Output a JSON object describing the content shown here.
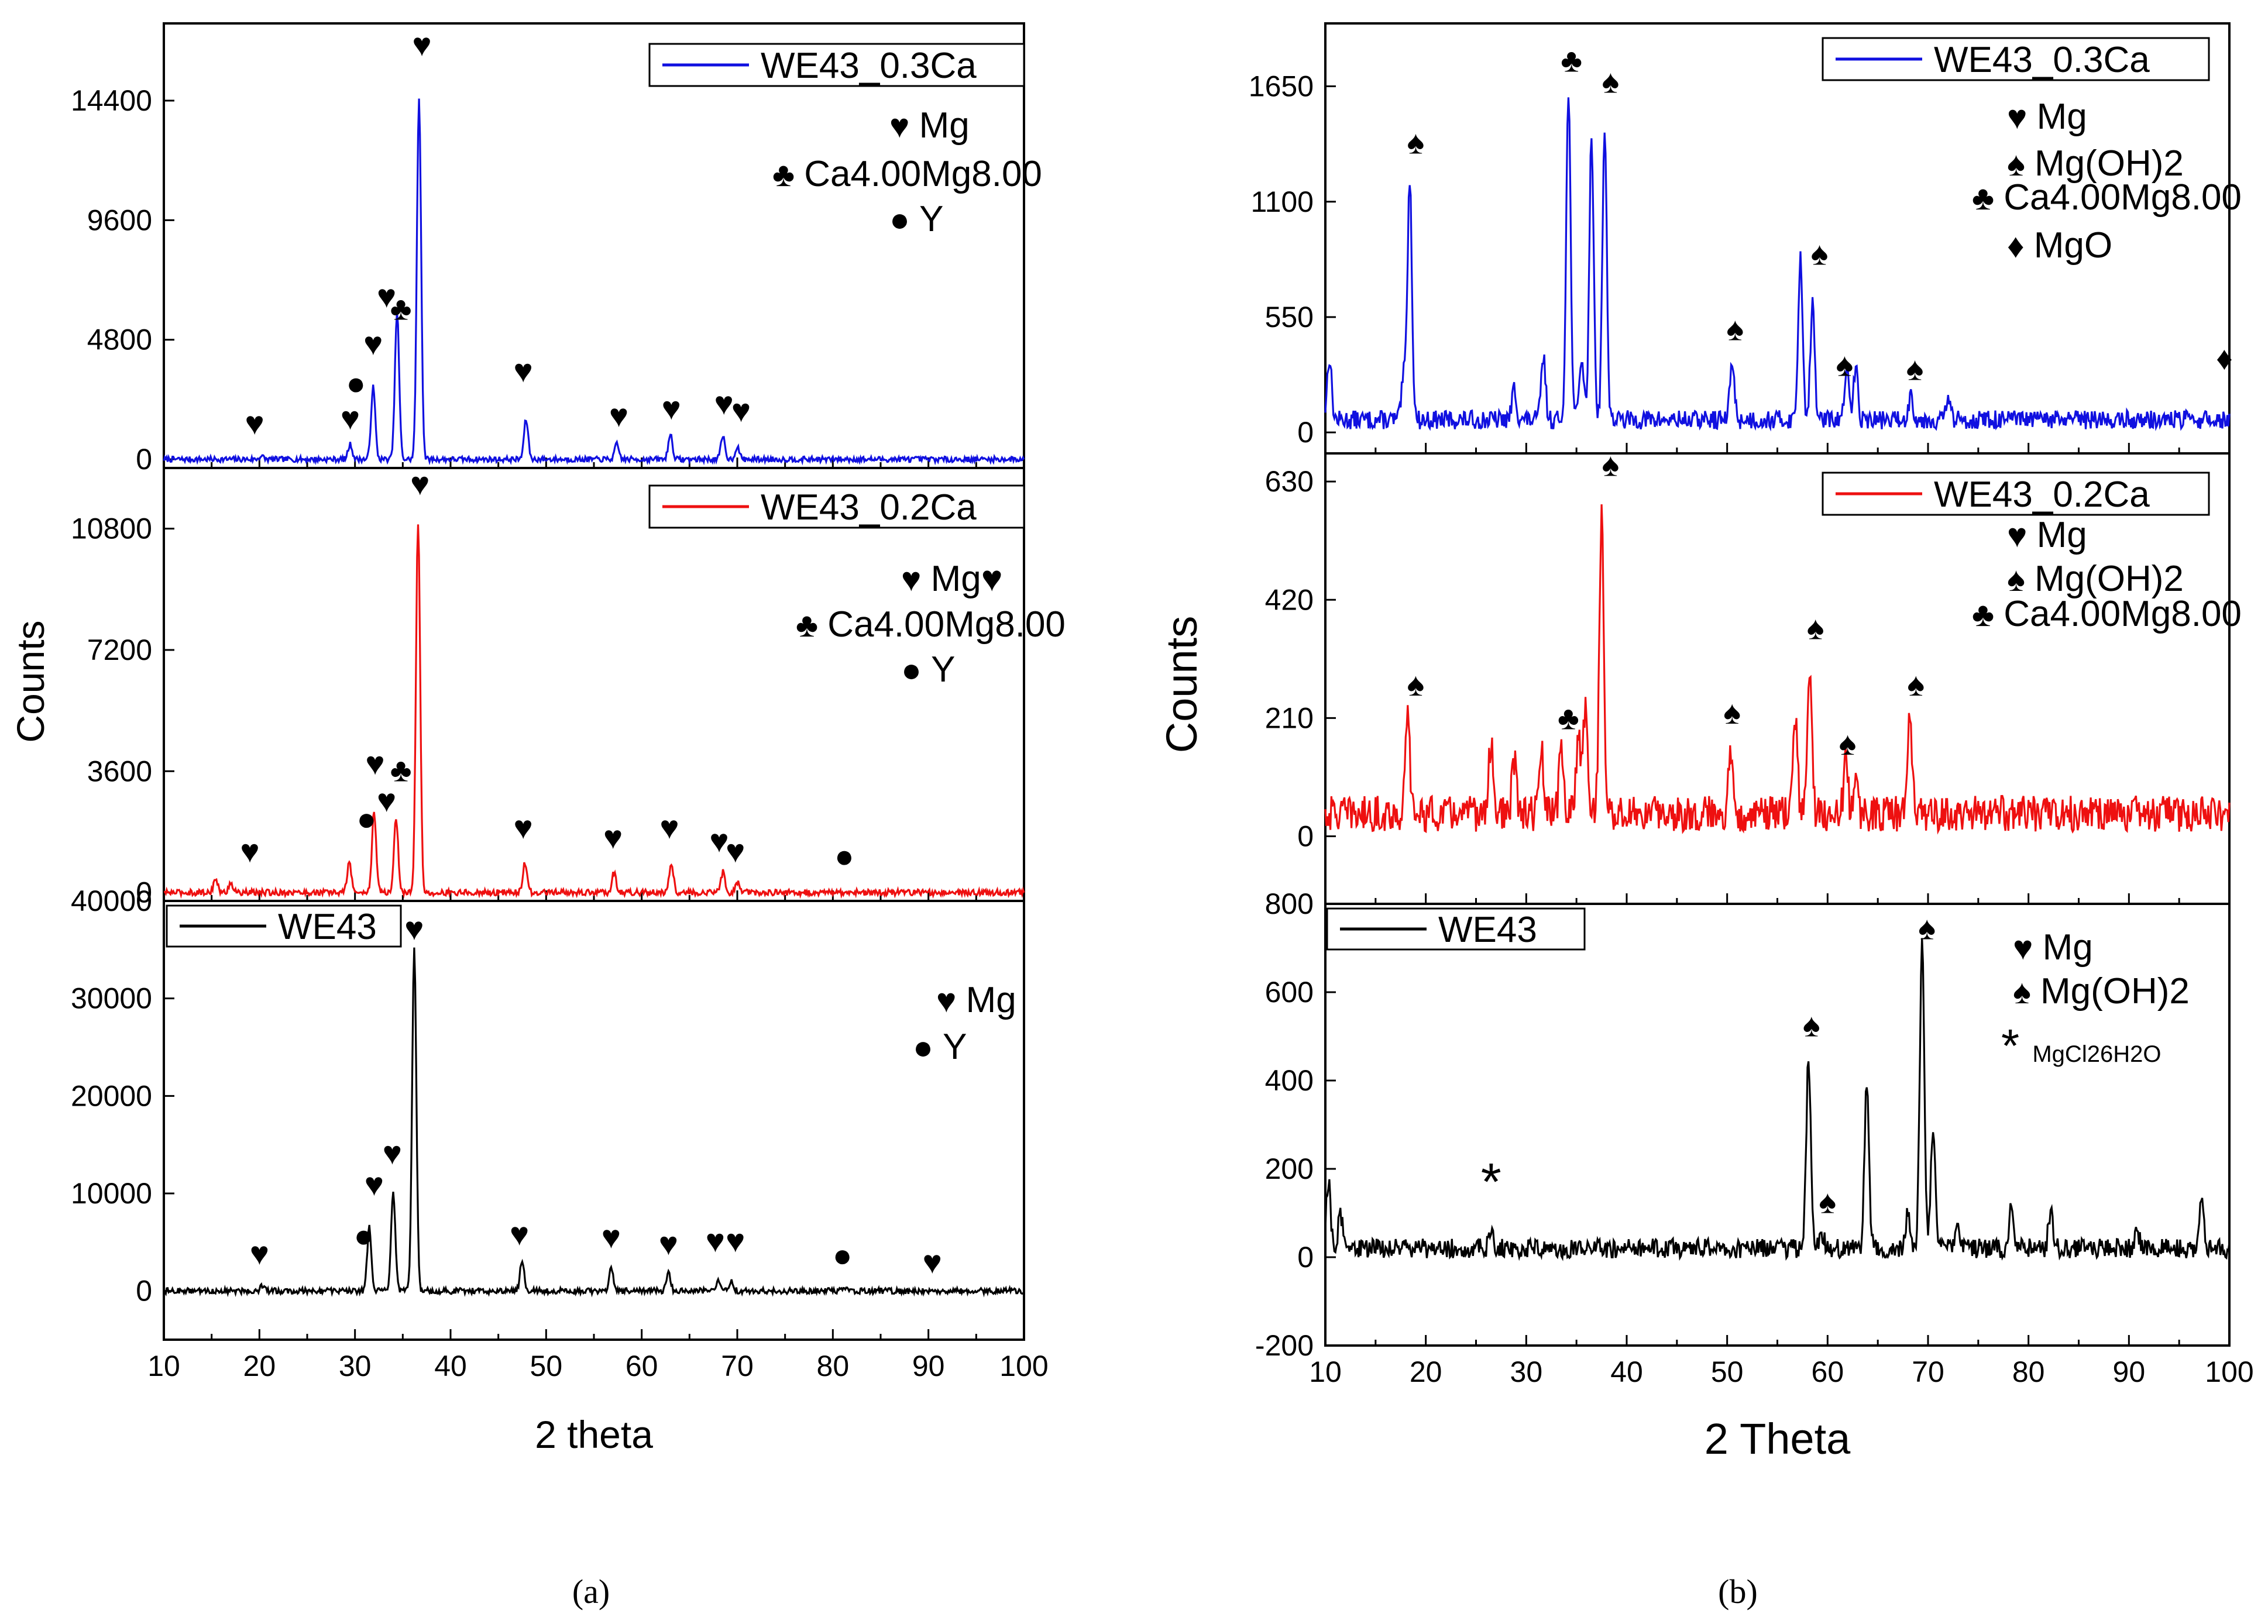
{
  "figure": {
    "caption_a": "(a)",
    "caption_b": "(b)"
  },
  "chart_data": [
    {
      "id": "a",
      "type": "line",
      "stacked": true,
      "xlabel": "2 theta",
      "ylabel": "Counts",
      "xlim": [
        10,
        100
      ],
      "xticks": [
        10,
        20,
        30,
        40,
        50,
        60,
        70,
        80,
        90,
        100
      ],
      "panels": [
        {
          "name": "WE43_0.3Ca",
          "color": "#1010e0",
          "legend_label": "WE43_0.3Ca",
          "ylim": [
            -350,
            17500
          ],
          "yticks": [
            0,
            4800,
            9600,
            14400
          ],
          "baseline": 0,
          "noise": 110,
          "peaks": [
            [
              20.2,
              120
            ],
            [
              29.5,
              600
            ],
            [
              31.9,
              2900
            ],
            [
              34.4,
              5900
            ],
            [
              36.7,
              14500
            ],
            [
              47.9,
              1600
            ],
            [
              57.4,
              600
            ],
            [
              63.0,
              1000
            ],
            [
              68.5,
              900
            ],
            [
              70.0,
              500
            ]
          ],
          "markers": [
            {
              "x": 19.5,
              "y": 1000,
              "sym": "♥"
            },
            {
              "x": 29.5,
              "y": 1200,
              "sym": "♥"
            },
            {
              "x": 30.1,
              "y": 2600,
              "sym": "●"
            },
            {
              "x": 31.9,
              "y": 4200,
              "sym": "♥"
            },
            {
              "x": 33.3,
              "y": 6100,
              "sym": "♥"
            },
            {
              "x": 34.8,
              "y": 5600,
              "sym": "♣"
            },
            {
              "x": 37.0,
              "y": 16200,
              "sym": "♥"
            },
            {
              "x": 47.6,
              "y": 3100,
              "sym": "♥"
            },
            {
              "x": 57.6,
              "y": 1300,
              "sym": "♥"
            },
            {
              "x": 63.1,
              "y": 1600,
              "sym": "♥"
            },
            {
              "x": 68.6,
              "y": 1800,
              "sym": "♥"
            },
            {
              "x": 70.4,
              "y": 1500,
              "sym": "♥"
            }
          ],
          "phases": [
            {
              "sym": "♥",
              "label": "Mg"
            },
            {
              "sym": "♣",
              "label": "Ca4.00Mg8.00"
            },
            {
              "sym": "●",
              "label": "Y"
            }
          ]
        },
        {
          "name": "WE43_0.2Ca",
          "color": "#ee1010",
          "legend_label": "WE43_0.2Ca",
          "ylim": [
            -250,
            12600
          ],
          "yticks": [
            0,
            3600,
            7200,
            10800
          ],
          "baseline": 0,
          "noise": 90,
          "peaks": [
            [
              15.4,
              400
            ],
            [
              17.0,
              300
            ],
            [
              29.4,
              900
            ],
            [
              32.0,
              2400
            ],
            [
              34.3,
              2200
            ],
            [
              36.6,
              11000
            ],
            [
              47.8,
              900
            ],
            [
              57.1,
              600
            ],
            [
              63.1,
              900
            ],
            [
              68.5,
              600
            ],
            [
              70.0,
              300
            ]
          ],
          "markers": [
            {
              "x": 19.0,
              "y": 900,
              "sym": "♥"
            },
            {
              "x": 31.2,
              "y": 1850,
              "sym": "●"
            },
            {
              "x": 32.1,
              "y": 3500,
              "sym": "♥"
            },
            {
              "x": 33.3,
              "y": 2400,
              "sym": "♥"
            },
            {
              "x": 34.8,
              "y": 3300,
              "sym": "♣"
            },
            {
              "x": 36.8,
              "y": 11800,
              "sym": "♥"
            },
            {
              "x": 47.6,
              "y": 1600,
              "sym": "♥"
            },
            {
              "x": 57.0,
              "y": 1300,
              "sym": "♥"
            },
            {
              "x": 62.9,
              "y": 1600,
              "sym": "♥"
            },
            {
              "x": 68.1,
              "y": 1200,
              "sym": "♥"
            },
            {
              "x": 69.8,
              "y": 900,
              "sym": "♥"
            },
            {
              "x": 81.2,
              "y": 750,
              "sym": "●"
            }
          ],
          "phases": [
            {
              "sym": "♥",
              "label": "Mg♥"
            },
            {
              "sym": "♣",
              "label": "Ca4.00Mg8.00"
            },
            {
              "sym": "●",
              "label": "Y"
            }
          ]
        },
        {
          "name": "WE43",
          "color": "#000000",
          "legend_label": "WE43",
          "ylim": [
            -5000,
            40000
          ],
          "yticks": [
            0,
            10000,
            20000,
            30000,
            40000
          ],
          "baseline": 0,
          "noise": 300,
          "peaks": [
            [
              20.3,
              500
            ],
            [
              31.5,
              6500
            ],
            [
              34.0,
              10000
            ],
            [
              36.2,
              35000
            ],
            [
              47.5,
              3200
            ],
            [
              56.8,
              2200
            ],
            [
              62.8,
              1800
            ],
            [
              68.0,
              1200
            ],
            [
              69.4,
              1000
            ],
            [
              81.3,
              200
            ],
            [
              90.4,
              150
            ]
          ],
          "markers": [
            {
              "x": 20.0,
              "y": 2700,
              "sym": "♥"
            },
            {
              "x": 30.9,
              "y": 4500,
              "sym": "●"
            },
            {
              "x": 32.0,
              "y": 9800,
              "sym": "♥"
            },
            {
              "x": 33.9,
              "y": 13000,
              "sym": "♥"
            },
            {
              "x": 36.2,
              "y": 36000,
              "sym": "♥"
            },
            {
              "x": 47.2,
              "y": 4700,
              "sym": "♥"
            },
            {
              "x": 56.8,
              "y": 4400,
              "sym": "♥"
            },
            {
              "x": 62.8,
              "y": 3700,
              "sym": "♥"
            },
            {
              "x": 67.7,
              "y": 4000,
              "sym": "♥"
            },
            {
              "x": 69.8,
              "y": 4000,
              "sym": "♥"
            },
            {
              "x": 81.0,
              "y": 2500,
              "sym": "●"
            },
            {
              "x": 90.4,
              "y": 1800,
              "sym": "♥"
            }
          ],
          "phases": [
            {
              "sym": "♥",
              "label": "Mg"
            },
            {
              "sym": "●",
              "label": "Y"
            }
          ]
        }
      ]
    },
    {
      "id": "b",
      "type": "line",
      "stacked": true,
      "xlabel": "2 Theta",
      "ylabel": "Counts",
      "xlim": [
        10,
        100
      ],
      "xticks": [
        10,
        20,
        30,
        40,
        50,
        60,
        70,
        80,
        90,
        100
      ],
      "panels": [
        {
          "name": "WE43_0.3Ca",
          "color": "#1010e0",
          "legend_label": "WE43_0.3Ca",
          "ylim": [
            -100,
            1950
          ],
          "yticks": [
            0,
            550,
            1100,
            1650
          ],
          "baseline": 60,
          "noise": 45,
          "peaks": [
            [
              10.4,
              300
            ],
            [
              17.8,
              200
            ],
            [
              18.4,
              1150
            ],
            [
              28.8,
              150
            ],
            [
              31.7,
              300
            ],
            [
              34.2,
              1550
            ],
            [
              35.5,
              300
            ],
            [
              36.5,
              1350
            ],
            [
              37.8,
              1380
            ],
            [
              50.5,
              280
            ],
            [
              57.3,
              780
            ],
            [
              58.5,
              540
            ],
            [
              61.9,
              230
            ],
            [
              62.8,
              250
            ],
            [
              68.3,
              120
            ],
            [
              72.0,
              100
            ]
          ],
          "markers": [
            {
              "x": 19.0,
              "y": 1330,
              "sym": "♠"
            },
            {
              "x": 34.5,
              "y": 1720,
              "sym": "♣"
            },
            {
              "x": 38.4,
              "y": 1620,
              "sym": "♠"
            },
            {
              "x": 50.8,
              "y": 440,
              "sym": "♠"
            },
            {
              "x": 59.2,
              "y": 800,
              "sym": "♠"
            },
            {
              "x": 61.7,
              "y": 270,
              "sym": "♠"
            },
            {
              "x": 68.7,
              "y": 250,
              "sym": "♠"
            },
            {
              "x": 99.5,
              "y": 300,
              "sym": "♦"
            }
          ],
          "phases": [
            {
              "sym": "♥",
              "label": "Mg"
            },
            {
              "sym": "♠",
              "label": "Mg(OH)2"
            },
            {
              "sym": "♣",
              "label": "Ca4.00Mg8.00"
            },
            {
              "sym": "♦",
              "label": "MgO"
            }
          ]
        },
        {
          "name": "WE43_0.2Ca",
          "color": "#ee1010",
          "legend_label": "WE43_0.2Ca",
          "ylim": [
            -120,
            680
          ],
          "yticks": [
            0,
            210,
            420,
            630
          ],
          "baseline": 40,
          "noise": 32,
          "peaks": [
            [
              18.2,
              170
            ],
            [
              26.5,
              130
            ],
            [
              28.8,
              90
            ],
            [
              31.5,
              110
            ],
            [
              33.5,
              120
            ],
            [
              35.2,
              150
            ],
            [
              35.9,
              200
            ],
            [
              37.5,
              540
            ],
            [
              50.3,
              110
            ],
            [
              56.8,
              170
            ],
            [
              58.2,
              270
            ],
            [
              61.8,
              90
            ],
            [
              62.8,
              60
            ],
            [
              68.2,
              170
            ]
          ],
          "markers": [
            {
              "x": 19.0,
              "y": 250,
              "sym": "♠"
            },
            {
              "x": 34.2,
              "y": 190,
              "sym": "♣"
            },
            {
              "x": 38.4,
              "y": 640,
              "sym": "♠"
            },
            {
              "x": 50.5,
              "y": 200,
              "sym": "♠"
            },
            {
              "x": 58.8,
              "y": 350,
              "sym": "♠"
            },
            {
              "x": 62.0,
              "y": 145,
              "sym": "♠"
            },
            {
              "x": 68.8,
              "y": 250,
              "sym": "♠"
            }
          ],
          "phases": [
            {
              "sym": "♥",
              "label": "Mg"
            },
            {
              "sym": "♠",
              "label": "Mg(OH)2"
            },
            {
              "sym": "♣",
              "label": "Ca4.00Mg8.00"
            }
          ]
        },
        {
          "name": "WE43",
          "color": "#000000",
          "legend_label": "WE43",
          "ylim": [
            -200,
            800
          ],
          "yticks": [
            -200,
            0,
            200,
            400,
            600,
            800
          ],
          "baseline": 20,
          "noise": 22,
          "peaks": [
            [
              10.3,
              150
            ],
            [
              11.5,
              80
            ],
            [
              26.5,
              40
            ],
            [
              58.1,
              430
            ],
            [
              59.5,
              30
            ],
            [
              63.9,
              380
            ],
            [
              68.0,
              80
            ],
            [
              69.4,
              700
            ],
            [
              70.5,
              280
            ],
            [
              73.0,
              50
            ],
            [
              78.3,
              100
            ],
            [
              82.2,
              80
            ],
            [
              90.8,
              40
            ],
            [
              97.2,
              120
            ]
          ],
          "markers": [
            {
              "x": 26.5,
              "y": 130,
              "sym": "*"
            },
            {
              "x": 58.4,
              "y": 500,
              "sym": "♠"
            },
            {
              "x": 60.0,
              "y": 100,
              "sym": "♠"
            },
            {
              "x": 69.9,
              "y": 720,
              "sym": "♠"
            }
          ],
          "phases": [
            {
              "sym": "♥",
              "label": "Mg"
            },
            {
              "sym": "♠",
              "label": "Mg(OH)2"
            },
            {
              "sym": "*",
              "label": "MgCl26H2O"
            }
          ]
        }
      ]
    }
  ]
}
